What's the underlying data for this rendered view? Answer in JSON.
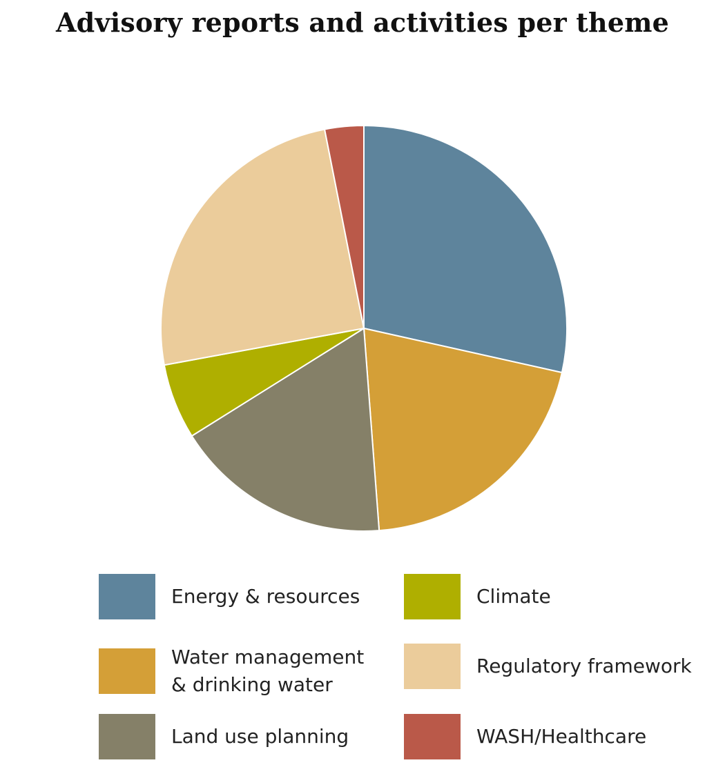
{
  "chart_data": {
    "type": "pie",
    "title": "Advisory reports and activities per theme",
    "start": "12 o'clock, clockwise",
    "slices": [
      {
        "label": "Energy & resources",
        "value": 28.5,
        "color": "#5E849C"
      },
      {
        "label": "Water management\n& drinking water",
        "value": 20.3,
        "color": "#D49F37"
      },
      {
        "label": "Land use planning",
        "value": 17.3,
        "color": "#858068"
      },
      {
        "label": "Climate",
        "value": 6.0,
        "color": "#AFAF00"
      },
      {
        "label": "Regulatory framework",
        "value": 24.8,
        "color": "#EBCC9B"
      },
      {
        "label": "WASH/Healthcare",
        "value": 3.1,
        "color": "#BA5949"
      }
    ],
    "legend": [
      {
        "label": "Energy & resources",
        "color": "#5E849C"
      },
      {
        "label": "Climate",
        "color": "#AFAF00"
      },
      {
        "label": "Water management\n& drinking water",
        "color": "#D49F37"
      },
      {
        "label": "Regulatory framework",
        "color": "#EBCC9B"
      },
      {
        "label": "Land use planning",
        "color": "#858068"
      },
      {
        "label": "WASH/Healthcare",
        "color": "#BA5949"
      }
    ],
    "legend_placement": "bottom, two columns"
  }
}
